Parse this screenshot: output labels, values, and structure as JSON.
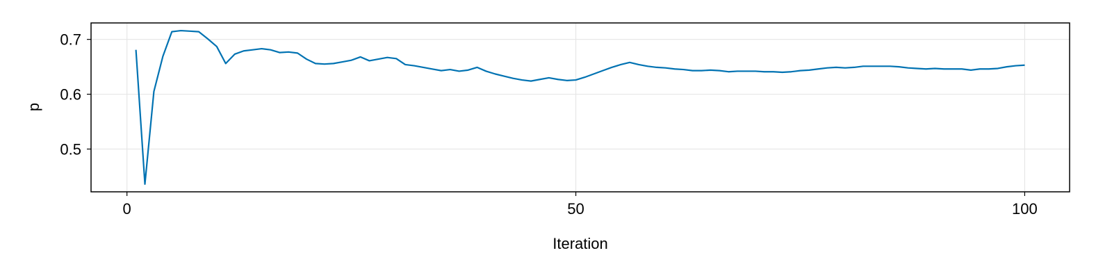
{
  "chart_data": {
    "type": "line",
    "title": "",
    "xlabel": "Iteration",
    "ylabel": "p",
    "xlim": [
      -4,
      105
    ],
    "ylim": [
      0.422,
      0.73
    ],
    "x_ticks": [
      0,
      50,
      100
    ],
    "x_tick_labels": [
      "0",
      "50",
      "100"
    ],
    "y_ticks": [
      0.5,
      0.6,
      0.7
    ],
    "y_tick_labels": [
      "0.5",
      "0.6",
      "0.7"
    ],
    "grid": true,
    "colors": {
      "line": "#0072B2",
      "grid": "#e6e6e6",
      "frame": "#000000"
    },
    "series": [
      {
        "values": [
          [
            1,
            0.681
          ],
          [
            2,
            0.436
          ],
          [
            3,
            0.605
          ],
          [
            4,
            0.669
          ],
          [
            5,
            0.714
          ],
          [
            6,
            0.716
          ],
          [
            7,
            0.715
          ],
          [
            8,
            0.714
          ],
          [
            9,
            0.701
          ],
          [
            10,
            0.687
          ],
          [
            11,
            0.656
          ],
          [
            12,
            0.673
          ],
          [
            13,
            0.679
          ],
          [
            14,
            0.681
          ],
          [
            15,
            0.683
          ],
          [
            16,
            0.681
          ],
          [
            17,
            0.676
          ],
          [
            18,
            0.677
          ],
          [
            19,
            0.675
          ],
          [
            20,
            0.664
          ],
          [
            21,
            0.656
          ],
          [
            22,
            0.655
          ],
          [
            23,
            0.656
          ],
          [
            24,
            0.659
          ],
          [
            25,
            0.662
          ],
          [
            26,
            0.668
          ],
          [
            27,
            0.661
          ],
          [
            28,
            0.664
          ],
          [
            29,
            0.667
          ],
          [
            30,
            0.665
          ],
          [
            31,
            0.654
          ],
          [
            32,
            0.652
          ],
          [
            33,
            0.649
          ],
          [
            34,
            0.646
          ],
          [
            35,
            0.643
          ],
          [
            36,
            0.645
          ],
          [
            37,
            0.642
          ],
          [
            38,
            0.644
          ],
          [
            39,
            0.649
          ],
          [
            40,
            0.642
          ],
          [
            41,
            0.637
          ],
          [
            42,
            0.633
          ],
          [
            43,
            0.629
          ],
          [
            44,
            0.626
          ],
          [
            45,
            0.624
          ],
          [
            46,
            0.627
          ],
          [
            47,
            0.63
          ],
          [
            48,
            0.627
          ],
          [
            49,
            0.625
          ],
          [
            50,
            0.626
          ],
          [
            51,
            0.631
          ],
          [
            52,
            0.637
          ],
          [
            53,
            0.643
          ],
          [
            54,
            0.649
          ],
          [
            55,
            0.654
          ],
          [
            56,
            0.658
          ],
          [
            57,
            0.654
          ],
          [
            58,
            0.651
          ],
          [
            59,
            0.649
          ],
          [
            60,
            0.648
          ],
          [
            61,
            0.646
          ],
          [
            62,
            0.645
          ],
          [
            63,
            0.643
          ],
          [
            64,
            0.643
          ],
          [
            65,
            0.644
          ],
          [
            66,
            0.643
          ],
          [
            67,
            0.641
          ],
          [
            68,
            0.642
          ],
          [
            69,
            0.642
          ],
          [
            70,
            0.642
          ],
          [
            71,
            0.641
          ],
          [
            72,
            0.641
          ],
          [
            73,
            0.64
          ],
          [
            74,
            0.641
          ],
          [
            75,
            0.643
          ],
          [
            76,
            0.644
          ],
          [
            77,
            0.646
          ],
          [
            78,
            0.648
          ],
          [
            79,
            0.649
          ],
          [
            80,
            0.648
          ],
          [
            81,
            0.649
          ],
          [
            82,
            0.651
          ],
          [
            83,
            0.651
          ],
          [
            84,
            0.651
          ],
          [
            85,
            0.651
          ],
          [
            86,
            0.65
          ],
          [
            87,
            0.648
          ],
          [
            88,
            0.647
          ],
          [
            89,
            0.646
          ],
          [
            90,
            0.647
          ],
          [
            91,
            0.646
          ],
          [
            92,
            0.646
          ],
          [
            93,
            0.646
          ],
          [
            94,
            0.644
          ],
          [
            95,
            0.646
          ],
          [
            96,
            0.646
          ],
          [
            97,
            0.647
          ],
          [
            98,
            0.65
          ],
          [
            99,
            0.652
          ],
          [
            100,
            0.653
          ]
        ]
      }
    ]
  }
}
